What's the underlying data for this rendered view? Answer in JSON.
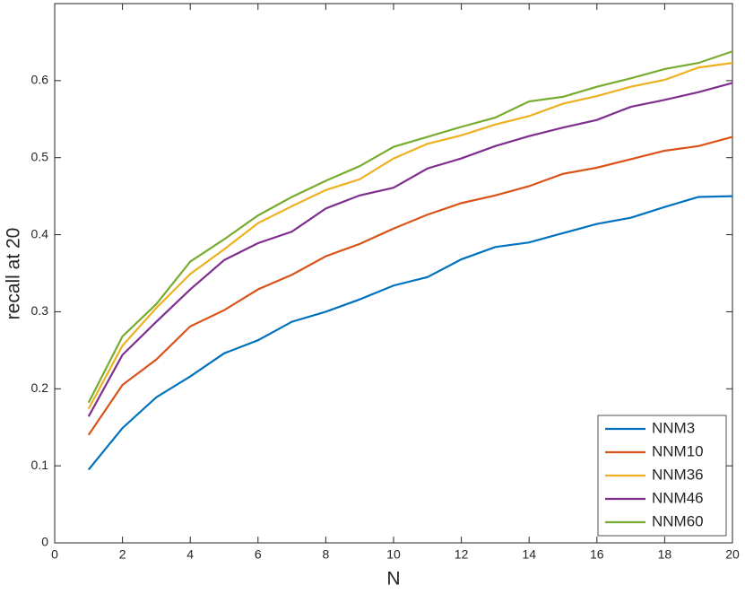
{
  "chart_data": {
    "type": "line",
    "x_label": "N",
    "y_label": "recall at 20",
    "x": [
      1,
      2,
      3,
      4,
      5,
      6,
      7,
      8,
      9,
      10,
      11,
      12,
      13,
      14,
      15,
      16,
      17,
      18,
      19,
      20
    ],
    "series": [
      {
        "name": "NNM3",
        "color": "#0072bd",
        "values": [
          0.095,
          0.149,
          0.189,
          0.216,
          0.246,
          0.263,
          0.287,
          0.3,
          0.316,
          0.334,
          0.345,
          0.368,
          0.384,
          0.39,
          0.402,
          0.414,
          0.422,
          0.436,
          0.449,
          0.45
        ]
      },
      {
        "name": "NNM10",
        "color": "#d95319",
        "values": [
          0.14,
          0.205,
          0.238,
          0.281,
          0.302,
          0.329,
          0.348,
          0.372,
          0.388,
          0.408,
          0.426,
          0.441,
          0.451,
          0.463,
          0.479,
          0.487,
          0.498,
          0.509,
          0.515,
          0.527
        ]
      },
      {
        "name": "NNM36",
        "color": "#edb120",
        "values": [
          0.174,
          0.256,
          0.305,
          0.349,
          0.381,
          0.415,
          0.437,
          0.458,
          0.472,
          0.499,
          0.518,
          0.529,
          0.543,
          0.554,
          0.57,
          0.58,
          0.592,
          0.601,
          0.617,
          0.623
        ]
      },
      {
        "name": "NNM46",
        "color": "#7e2f8e",
        "values": [
          0.164,
          0.244,
          0.287,
          0.329,
          0.367,
          0.389,
          0.404,
          0.434,
          0.451,
          0.461,
          0.486,
          0.499,
          0.515,
          0.528,
          0.539,
          0.549,
          0.566,
          0.575,
          0.585,
          0.597
        ]
      },
      {
        "name": "NNM60",
        "color": "#77ac30",
        "values": [
          0.182,
          0.268,
          0.31,
          0.365,
          0.394,
          0.425,
          0.449,
          0.47,
          0.489,
          0.514,
          0.527,
          0.54,
          0.552,
          0.573,
          0.579,
          0.592,
          0.603,
          0.615,
          0.623,
          0.638
        ]
      }
    ],
    "xlim": [
      0,
      20
    ],
    "xticks": [
      0,
      2,
      4,
      6,
      8,
      10,
      12,
      14,
      16,
      18,
      20
    ],
    "ylim": [
      0,
      0.7
    ],
    "yticks": [
      0,
      0.1,
      0.2,
      0.3,
      0.4,
      0.5,
      0.6
    ],
    "legend": "lower right",
    "grid": false
  }
}
